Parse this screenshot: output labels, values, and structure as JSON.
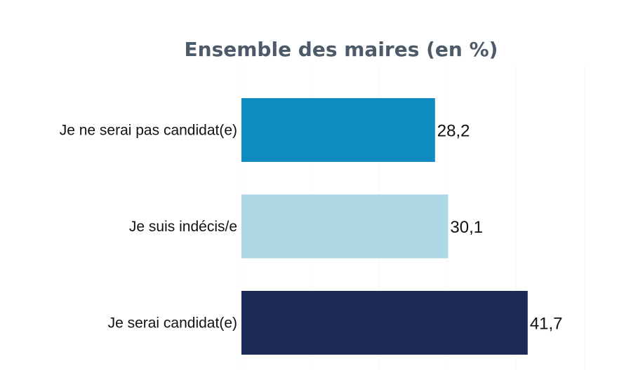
{
  "chart_data": {
    "type": "bar",
    "orientation": "horizontal",
    "title": "Ensemble des maires (en %)",
    "categories": [
      "Je ne serai pas candidat(e)",
      "Je suis indécis/e",
      "Je serai candidat(e)"
    ],
    "values": [
      28.2,
      30.1,
      41.7
    ],
    "value_labels": [
      "28,2",
      "30,1",
      "41,7"
    ],
    "colors": [
      "#0e8cbf",
      "#aed8e6",
      "#1b2a55"
    ],
    "xlabel": "",
    "ylabel": "",
    "xlim": [
      0,
      50
    ],
    "grid": true,
    "legend": "none"
  }
}
